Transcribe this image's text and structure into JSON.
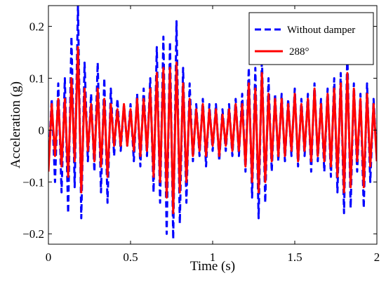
{
  "chart_data": {
    "type": "line",
    "title": "",
    "xlabel": "Time (s)",
    "ylabel": "Acceleration (g)",
    "xlim": [
      0,
      2
    ],
    "ylim": [
      -0.22,
      0.24
    ],
    "xticks": [
      0,
      0.5,
      1,
      1.5,
      2
    ],
    "xtick_labels": [
      "0",
      "0.5",
      "1",
      "1.5",
      "2"
    ],
    "yticks": [
      -0.2,
      -0.1,
      0,
      0.1,
      0.2
    ],
    "ytick_labels": [
      "−0.2",
      "−0.1",
      "0",
      "0.1",
      "0.2"
    ],
    "grid": false,
    "legend_position": "top-right",
    "series": [
      {
        "name": "Without damper",
        "color": "#0000ff",
        "dash": "dashed",
        "x": [
          0.0,
          0.02,
          0.04,
          0.06,
          0.08,
          0.1,
          0.12,
          0.14,
          0.16,
          0.18,
          0.2,
          0.22,
          0.24,
          0.26,
          0.28,
          0.3,
          0.32,
          0.34,
          0.36,
          0.38,
          0.4,
          0.42,
          0.44,
          0.46,
          0.48,
          0.5,
          0.52,
          0.54,
          0.56,
          0.58,
          0.6,
          0.62,
          0.64,
          0.66,
          0.68,
          0.7,
          0.72,
          0.74,
          0.76,
          0.78,
          0.8,
          0.82,
          0.84,
          0.86,
          0.88,
          0.9,
          0.92,
          0.94,
          0.96,
          0.98,
          1.0,
          1.02,
          1.04,
          1.06,
          1.08,
          1.1,
          1.12,
          1.14,
          1.16,
          1.18,
          1.2,
          1.22,
          1.24,
          1.26,
          1.28,
          1.3,
          1.32,
          1.34,
          1.36,
          1.38,
          1.4,
          1.42,
          1.44,
          1.46,
          1.48,
          1.5,
          1.52,
          1.54,
          1.56,
          1.58,
          1.6,
          1.62,
          1.64,
          1.66,
          1.68,
          1.7,
          1.72,
          1.74,
          1.76,
          1.78,
          1.8,
          1.82,
          1.84,
          1.86,
          1.88,
          1.9,
          1.92,
          1.94,
          1.96,
          1.98,
          2.0
        ],
        "y": [
          -0.07,
          0.06,
          -0.1,
          0.09,
          -0.12,
          0.1,
          -0.16,
          0.18,
          -0.11,
          0.24,
          -0.17,
          0.13,
          -0.06,
          0.07,
          -0.08,
          0.13,
          -0.12,
          0.1,
          -0.14,
          0.08,
          -0.05,
          0.06,
          -0.04,
          0.05,
          -0.03,
          0.05,
          -0.06,
          0.07,
          -0.07,
          0.08,
          -0.05,
          0.1,
          -0.12,
          0.16,
          -0.14,
          0.18,
          -0.2,
          0.17,
          -0.21,
          0.21,
          -0.18,
          0.12,
          -0.14,
          0.09,
          -0.06,
          0.05,
          -0.05,
          0.06,
          -0.07,
          0.05,
          -0.04,
          0.05,
          -0.06,
          0.04,
          -0.04,
          0.05,
          -0.05,
          0.06,
          -0.05,
          0.07,
          -0.08,
          0.12,
          -0.13,
          0.12,
          -0.17,
          0.14,
          -0.14,
          0.1,
          -0.08,
          0.07,
          -0.06,
          0.07,
          -0.06,
          0.06,
          -0.05,
          0.08,
          -0.07,
          0.06,
          -0.05,
          0.07,
          -0.08,
          0.09,
          -0.06,
          0.06,
          -0.08,
          0.08,
          -0.09,
          0.1,
          -0.12,
          0.11,
          -0.16,
          0.15,
          -0.15,
          0.09,
          -0.08,
          0.07,
          -0.15,
          0.09,
          -0.1,
          0.06,
          -0.06
        ]
      },
      {
        "name": "288°",
        "color": "#ff0000",
        "dash": "solid",
        "x": [
          0.0,
          0.02,
          0.04,
          0.06,
          0.08,
          0.1,
          0.12,
          0.14,
          0.16,
          0.18,
          0.2,
          0.22,
          0.24,
          0.26,
          0.28,
          0.3,
          0.32,
          0.34,
          0.36,
          0.38,
          0.4,
          0.42,
          0.44,
          0.46,
          0.48,
          0.5,
          0.52,
          0.54,
          0.56,
          0.58,
          0.6,
          0.62,
          0.64,
          0.66,
          0.68,
          0.7,
          0.72,
          0.74,
          0.76,
          0.78,
          0.8,
          0.82,
          0.84,
          0.86,
          0.88,
          0.9,
          0.92,
          0.94,
          0.96,
          0.98,
          1.0,
          1.02,
          1.04,
          1.06,
          1.08,
          1.1,
          1.12,
          1.14,
          1.16,
          1.18,
          1.2,
          1.22,
          1.24,
          1.26,
          1.28,
          1.3,
          1.32,
          1.34,
          1.36,
          1.38,
          1.4,
          1.42,
          1.44,
          1.46,
          1.48,
          1.5,
          1.52,
          1.54,
          1.56,
          1.58,
          1.6,
          1.62,
          1.64,
          1.66,
          1.68,
          1.7,
          1.72,
          1.74,
          1.76,
          1.78,
          1.8,
          1.82,
          1.84,
          1.86,
          1.88,
          1.9,
          1.92,
          1.94,
          1.96,
          1.98,
          2.0
        ],
        "y": [
          -0.08,
          0.05,
          -0.05,
          0.06,
          -0.07,
          0.06,
          -0.09,
          0.1,
          -0.06,
          0.16,
          -0.12,
          0.08,
          -0.04,
          0.05,
          -0.06,
          0.08,
          -0.07,
          0.06,
          -0.09,
          0.05,
          -0.03,
          0.04,
          -0.03,
          0.05,
          -0.03,
          0.04,
          -0.04,
          0.06,
          -0.05,
          0.06,
          -0.04,
          0.08,
          -0.09,
          0.11,
          -0.1,
          0.12,
          -0.13,
          0.12,
          -0.16,
          0.13,
          -0.12,
          0.09,
          -0.1,
          0.06,
          -0.05,
          0.04,
          -0.04,
          0.05,
          -0.05,
          0.04,
          -0.03,
          0.04,
          -0.05,
          0.03,
          -0.03,
          0.04,
          -0.04,
          0.05,
          -0.04,
          0.05,
          -0.07,
          0.09,
          -0.1,
          0.08,
          -0.12,
          0.11,
          -0.1,
          0.07,
          -0.06,
          0.06,
          -0.05,
          0.06,
          -0.05,
          0.05,
          -0.04,
          0.07,
          -0.06,
          0.05,
          -0.04,
          0.06,
          -0.06,
          0.08,
          -0.05,
          0.05,
          -0.06,
          0.07,
          -0.07,
          0.08,
          -0.09,
          0.09,
          -0.12,
          0.11,
          -0.11,
          0.08,
          -0.06,
          0.06,
          -0.11,
          0.07,
          -0.07,
          0.05,
          -0.06
        ]
      }
    ]
  }
}
